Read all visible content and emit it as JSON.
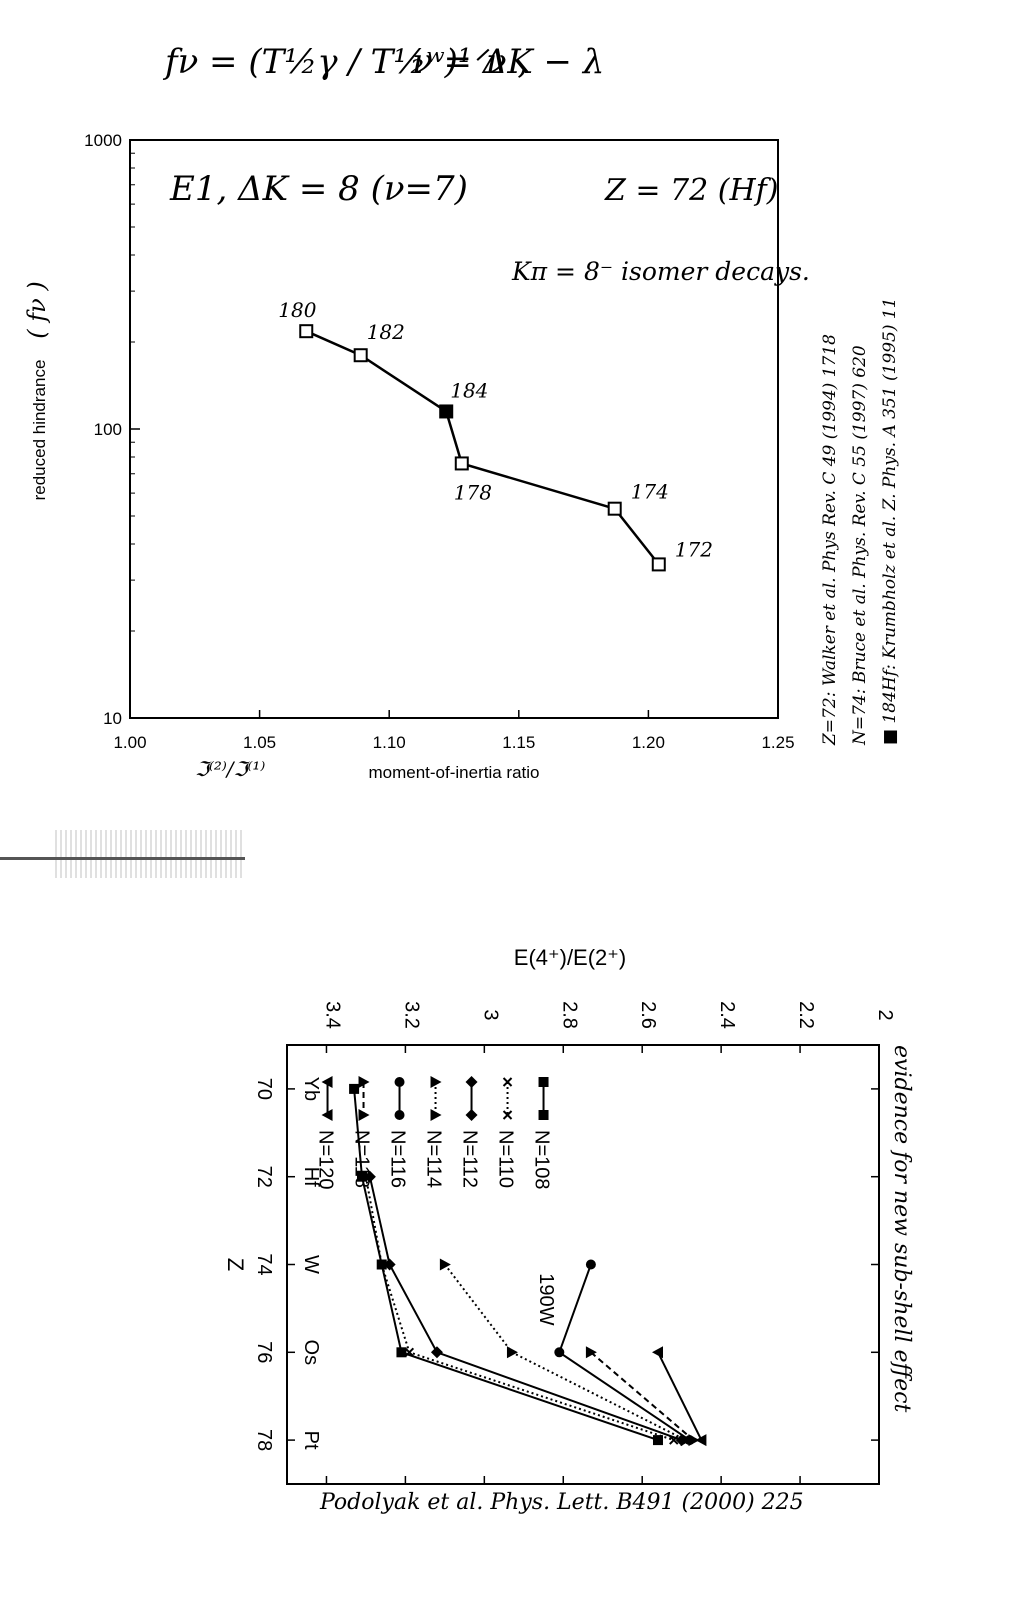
{
  "handwritten": {
    "formula_left": "fν = (T½γ / T½ʷ)¹ᐟν ,",
    "formula_right": "ν = ΔK − λ",
    "refs": [
      "Z=72: Walker et al. Phys Rev. C 49 (1994) 1718",
      "N=74: Bruce et al. Phys. Rev. C 55 (1997) 620",
      "■ 184Hf: Krumbholz et al. Z. Phys. A 351 (1995) 11"
    ],
    "bottom_citation": "Podolyak et al. Phys. Lett. B491 (2000) 225",
    "sub_shell_note": "evidence for new sub-shell effect"
  },
  "chart_data": [
    {
      "type": "line",
      "yscale": "log",
      "ylabel": "reduced hindrance",
      "ylabel_hand": "( fν )",
      "xlabel": "moment-of-inertia ratio",
      "xlabel_hand": "ℑ⁽²⁾/ℑ⁽¹⁾",
      "xlim": [
        1.0,
        1.25
      ],
      "ylim": [
        10,
        1000
      ],
      "xticks": [
        "1.00",
        "1.05",
        "1.10",
        "1.15",
        "1.20",
        "1.25"
      ],
      "yticks": [
        "10",
        "100",
        "1000"
      ],
      "annotations": [
        "E1, ΔK = 8  (ν=7)",
        "Z = 72 (Hf)",
        "Kπ = 8⁻ isomer decays."
      ],
      "series": [
        {
          "points": [
            {
              "x": 1.068,
              "y": 218,
              "label": "180",
              "filled": false
            },
            {
              "x": 1.089,
              "y": 180,
              "label": "182",
              "filled": false
            },
            {
              "x": 1.122,
              "y": 115,
              "label": "184",
              "filled": true
            },
            {
              "x": 1.128,
              "y": 76,
              "label": "178",
              "filled": false
            },
            {
              "x": 1.187,
              "y": 53,
              "label": "174",
              "filled": false
            },
            {
              "x": 1.204,
              "y": 34,
              "label": "172",
              "filled": false
            }
          ]
        }
      ]
    },
    {
      "type": "line",
      "rotated": true,
      "xlabel": "Z",
      "ylabel": "E(4⁺)/E(2⁺)",
      "xlim": [
        69,
        79
      ],
      "ylim": [
        2.0,
        3.5
      ],
      "xticks": [
        "70",
        "72",
        "74",
        "76",
        "78"
      ],
      "element_labels": [
        "Yb",
        "Hf",
        "W",
        "Os",
        "Pt"
      ],
      "yticks": [
        "2",
        "2.2",
        "2.4",
        "2.6",
        "2.8",
        "3",
        "3.2",
        "3.4"
      ],
      "annotation": "190W",
      "series": [
        {
          "name": "N=108",
          "marker": "square",
          "line": "solid",
          "points": [
            [
              70,
              3.33
            ],
            [
              72,
              3.31
            ],
            [
              74,
              3.26
            ],
            [
              76,
              3.21
            ],
            [
              78,
              2.56
            ]
          ]
        },
        {
          "name": "N=110",
          "marker": "x",
          "line": "dotted",
          "points": [
            [
              72,
              3.3
            ],
            [
              74,
              3.26
            ],
            [
              76,
              3.19
            ],
            [
              78,
              2.52
            ]
          ]
        },
        {
          "name": "N=112",
          "marker": "diamond",
          "line": "solid",
          "points": [
            [
              72,
              3.29
            ],
            [
              74,
              3.24
            ],
            [
              76,
              3.12
            ],
            [
              78,
              2.5
            ]
          ]
        },
        {
          "name": "N=114",
          "marker": "triangle-up",
          "line": "dotted",
          "points": [
            [
              74,
              3.1
            ],
            [
              76,
              2.93
            ],
            [
              78,
              2.49
            ]
          ]
        },
        {
          "name": "N=116",
          "marker": "circle",
          "line": "solid",
          "points": [
            [
              74,
              2.73
            ],
            [
              76,
              2.81
            ],
            [
              78,
              2.48
            ]
          ]
        },
        {
          "name": "N=118",
          "marker": "triangle-up",
          "line": "dashed",
          "points": [
            [
              76,
              2.73
            ],
            [
              78,
              2.47
            ]
          ]
        },
        {
          "name": "N=120",
          "marker": "triangle-down",
          "line": "solid",
          "points": [
            [
              76,
              2.56
            ],
            [
              78,
              2.45
            ]
          ]
        }
      ]
    }
  ]
}
